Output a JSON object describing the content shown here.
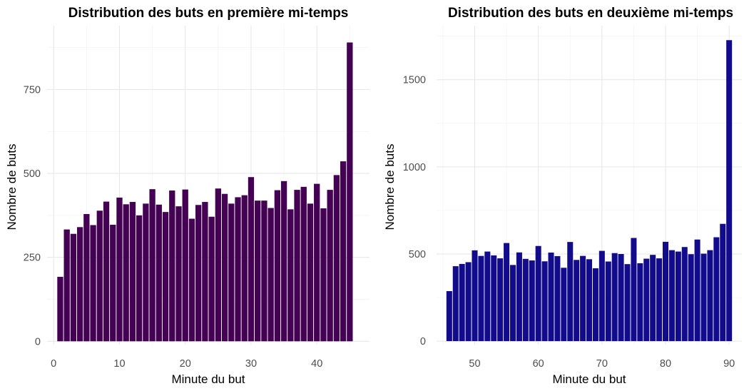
{
  "chart_data": [
    {
      "type": "bar",
      "title": "Distribution des buts en première mi-temps",
      "xlabel": "Minute du but",
      "ylabel": "Nombre de buts",
      "x": [
        1,
        2,
        3,
        4,
        5,
        6,
        7,
        8,
        9,
        10,
        11,
        12,
        13,
        14,
        15,
        16,
        17,
        18,
        19,
        20,
        21,
        22,
        23,
        24,
        25,
        26,
        27,
        28,
        29,
        30,
        31,
        32,
        33,
        34,
        35,
        36,
        37,
        38,
        39,
        40,
        41,
        42,
        43,
        44,
        45
      ],
      "values": [
        192,
        333,
        320,
        340,
        379,
        346,
        389,
        416,
        347,
        428,
        408,
        415,
        375,
        410,
        453,
        407,
        385,
        449,
        402,
        452,
        365,
        406,
        415,
        371,
        455,
        439,
        410,
        429,
        435,
        489,
        419,
        419,
        397,
        450,
        477,
        393,
        451,
        460,
        410,
        469,
        396,
        451,
        495,
        536,
        890
      ],
      "xlim": [
        -1,
        48
      ],
      "ylim": [
        -10,
        940
      ],
      "xticks": [
        "0",
        "10",
        "20",
        "30",
        "40"
      ],
      "yticks": [
        "0",
        "250",
        "500",
        "750"
      ],
      "grid": true,
      "color": "#440154"
    },
    {
      "type": "bar",
      "title": "Distribution des buts en deuxième mi-temps",
      "xlabel": "Minute du but",
      "ylabel": "Nombre de buts",
      "x": [
        46,
        47,
        48,
        49,
        50,
        51,
        52,
        53,
        54,
        55,
        56,
        57,
        58,
        59,
        60,
        61,
        62,
        63,
        64,
        65,
        66,
        67,
        68,
        69,
        70,
        71,
        72,
        73,
        74,
        75,
        76,
        77,
        78,
        79,
        80,
        81,
        82,
        83,
        84,
        85,
        86,
        87,
        88,
        89,
        90
      ],
      "values": [
        287,
        430,
        443,
        453,
        521,
        489,
        514,
        492,
        475,
        563,
        437,
        509,
        472,
        463,
        546,
        458,
        508,
        488,
        421,
        569,
        466,
        489,
        470,
        418,
        518,
        457,
        505,
        500,
        442,
        592,
        447,
        473,
        495,
        475,
        570,
        522,
        514,
        540,
        499,
        583,
        502,
        522,
        596,
        673,
        1727
      ],
      "xlim": [
        44,
        92
      ],
      "ylim": [
        -20,
        1810
      ],
      "xticks": [
        "50",
        "60",
        "70",
        "80",
        "90"
      ],
      "yticks": [
        "0",
        "500",
        "1000",
        "1500"
      ],
      "grid": true,
      "color": "#120c8c"
    }
  ]
}
